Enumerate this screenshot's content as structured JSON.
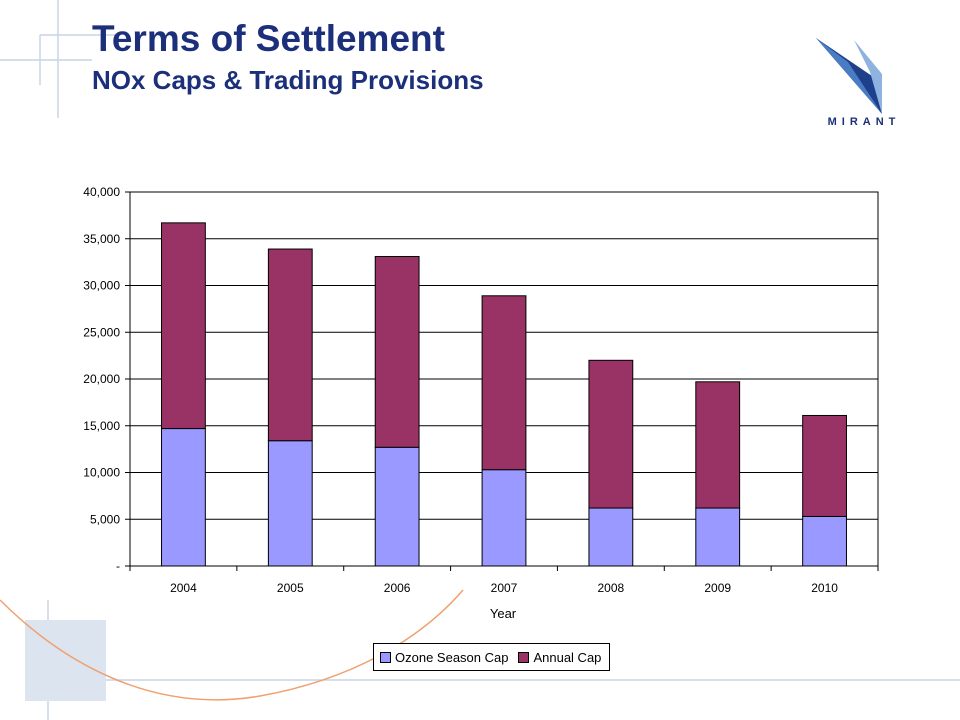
{
  "header": {
    "title": "Terms of Settlement",
    "subtitle": "NOx Caps & Trading Provisions"
  },
  "logo": {
    "name": "MIRANT",
    "icon": "mirant-logo"
  },
  "colors": {
    "title": "#1c2f7a",
    "deco_lines": "#c9d4e6",
    "deco_square": "#dce4f0",
    "deco_arc": "#f0a070"
  },
  "chart_data": {
    "type": "bar",
    "stacked": true,
    "categories": [
      "2004",
      "2005",
      "2006",
      "2007",
      "2008",
      "2009",
      "2010"
    ],
    "series": [
      {
        "name": "Ozone Season Cap",
        "color": "#9999ff",
        "values": [
          14700,
          13400,
          12700,
          10300,
          6200,
          6200,
          5300
        ]
      },
      {
        "name": "Annual Cap",
        "color": "#993366",
        "values": [
          22000,
          20500,
          20400,
          18600,
          15800,
          13500,
          10800
        ]
      }
    ],
    "xlabel": "Year",
    "ylabel": "",
    "ylim": [
      0,
      40000
    ],
    "yticks": [
      0,
      5000,
      10000,
      15000,
      20000,
      25000,
      30000,
      35000,
      40000
    ],
    "ytick_labels": [
      "-",
      "5,000",
      "10,000",
      "15,000",
      "20,000",
      "25,000",
      "30,000",
      "35,000",
      "40,000"
    ],
    "grid": true,
    "legend": "bottom"
  }
}
